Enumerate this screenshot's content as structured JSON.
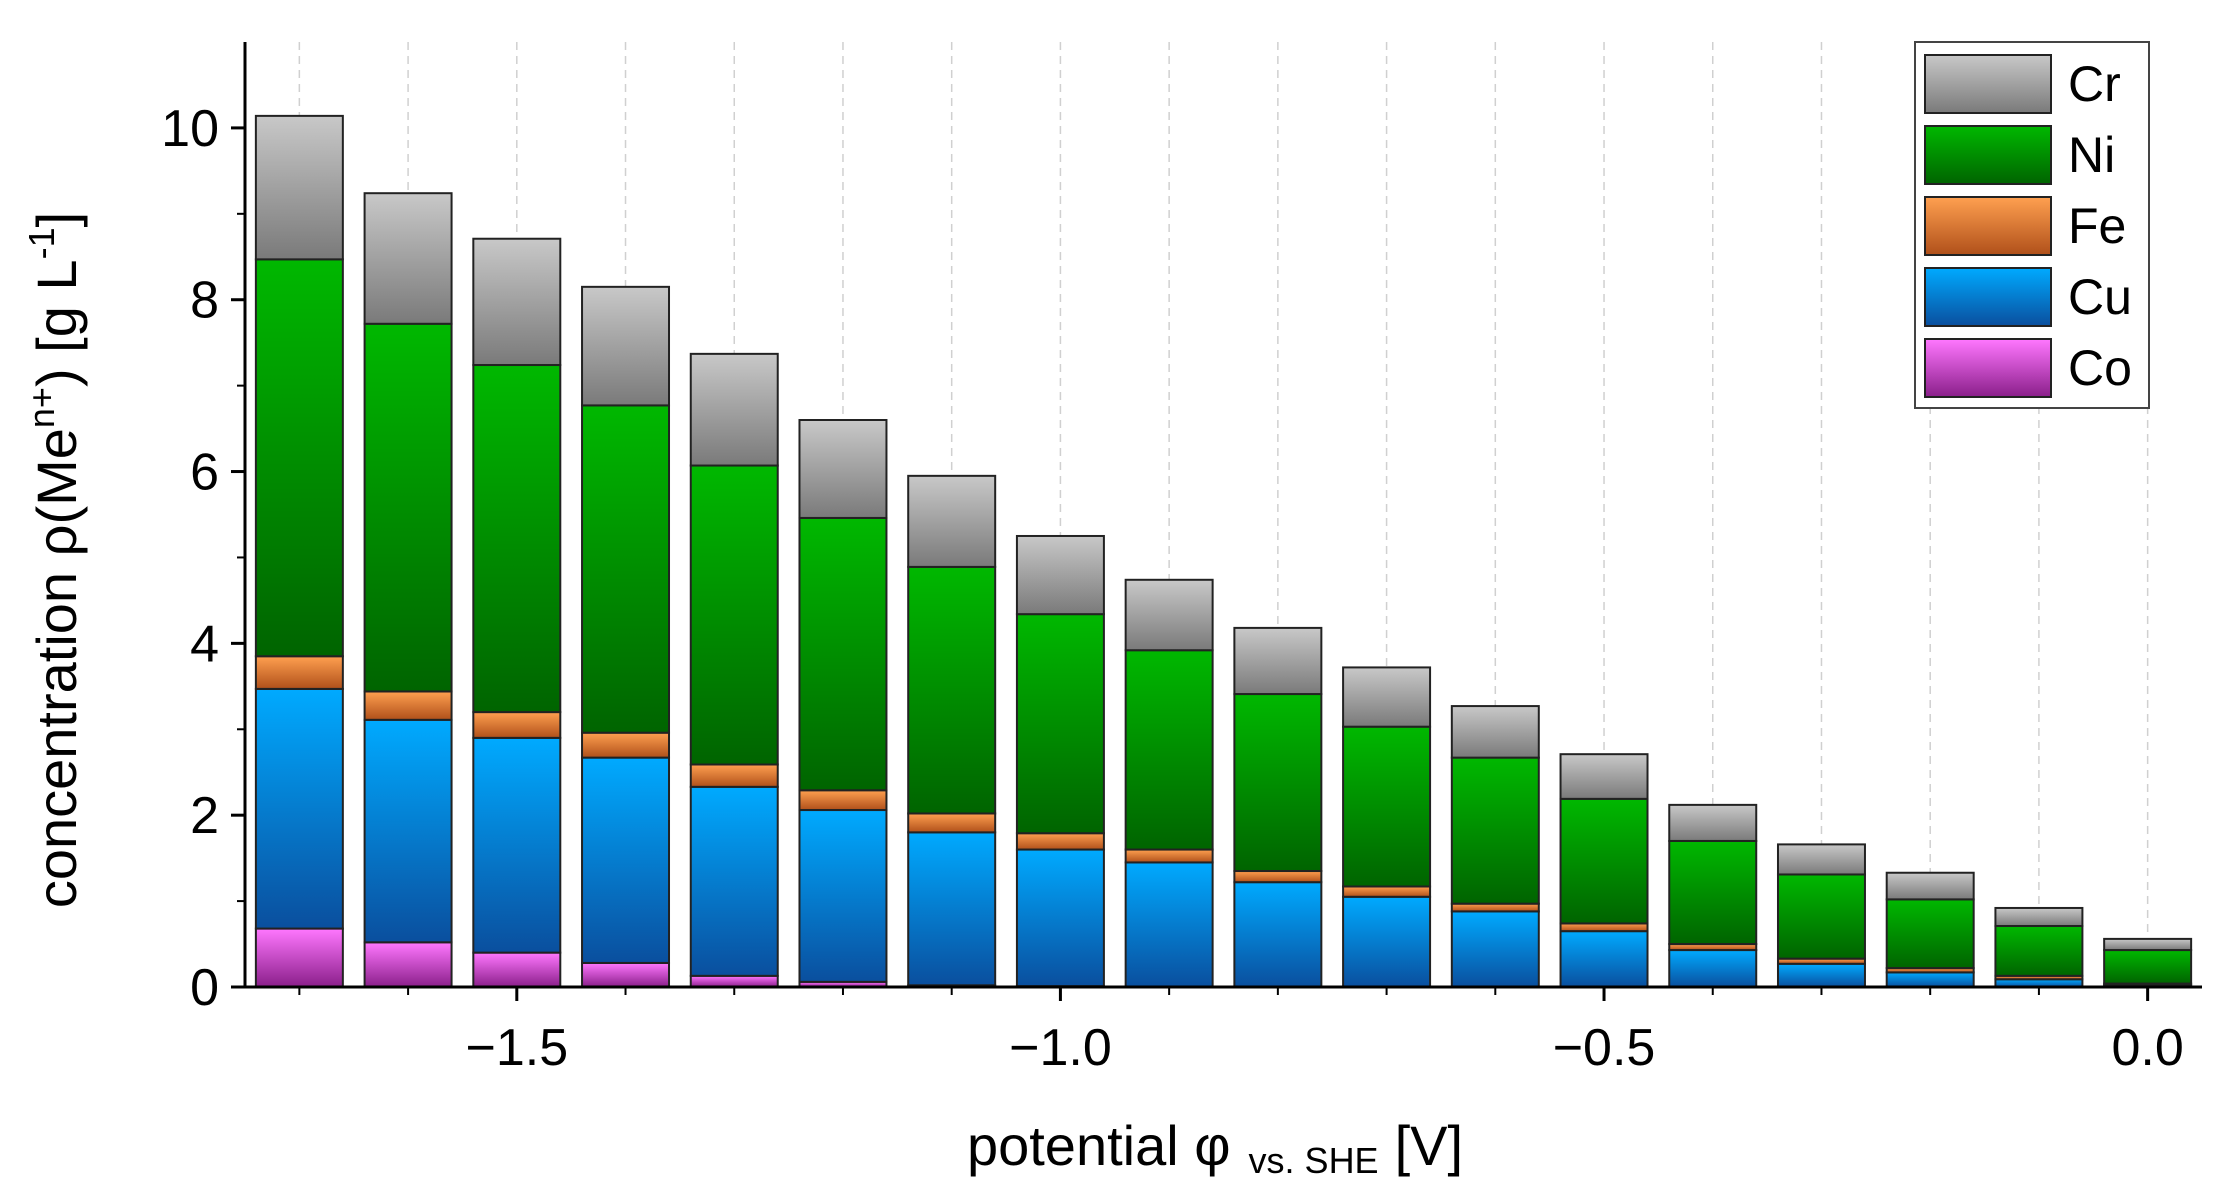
{
  "chart_data": {
    "type": "bar",
    "stacked": true,
    "title": "",
    "xlabel": {
      "main": "potential φ",
      "sub": "vs. SHE",
      "unit": "[V]"
    },
    "ylabel": {
      "prefix": "concentration ρ(Me",
      "sup1": "n+",
      "middle": ") [g L",
      "sup2": "-1",
      "suffix": "]"
    },
    "xlim": [
      -1.75,
      0.05
    ],
    "ylim": [
      0,
      11
    ],
    "xticks": [
      -1.5,
      -1.0,
      -0.5,
      0.0
    ],
    "xtick_labels": [
      "−1.5",
      "−1.0",
      "−0.5",
      "0.0"
    ],
    "yticks": [
      0,
      2,
      4,
      6,
      8,
      10
    ],
    "ytick_labels": [
      "0",
      "2",
      "4",
      "6",
      "8",
      "10"
    ],
    "grid": "vertical dashed",
    "legend_position": "top-right",
    "x": [
      -1.7,
      -1.6,
      -1.5,
      -1.4,
      -1.3,
      -1.2,
      -1.1,
      -1.0,
      -0.9,
      -0.8,
      -0.7,
      -0.6,
      -0.5,
      -0.4,
      -0.3,
      -0.2,
      -0.1,
      0.0
    ],
    "series": [
      {
        "name": "Co",
        "color_top": "#ff77ff",
        "color_bottom": "#8a1f8a",
        "values": [
          0.68,
          0.52,
          0.4,
          0.28,
          0.13,
          0.06,
          0.02,
          0.01,
          0.0,
          0.0,
          0.0,
          0.0,
          0.0,
          0.0,
          0.0,
          0.0,
          0.0,
          0.0
        ]
      },
      {
        "name": "Cu",
        "color_top": "#00aaff",
        "color_bottom": "#0a4f9e",
        "values": [
          2.79,
          2.59,
          2.5,
          2.39,
          2.2,
          2.0,
          1.78,
          1.59,
          1.45,
          1.22,
          1.05,
          0.88,
          0.65,
          0.43,
          0.27,
          0.17,
          0.09,
          0.02
        ]
      },
      {
        "name": "Fe",
        "color_top": "#ffa050",
        "color_bottom": "#b0501a",
        "values": [
          0.38,
          0.33,
          0.3,
          0.29,
          0.26,
          0.23,
          0.22,
          0.19,
          0.15,
          0.13,
          0.12,
          0.09,
          0.09,
          0.07,
          0.06,
          0.05,
          0.04,
          0.02
        ]
      },
      {
        "name": "Ni",
        "color_top": "#00b800",
        "color_bottom": "#006400",
        "values": [
          4.62,
          4.28,
          4.04,
          3.81,
          3.48,
          3.17,
          2.87,
          2.55,
          2.32,
          2.06,
          1.86,
          1.7,
          1.45,
          1.2,
          0.98,
          0.8,
          0.58,
          0.39
        ]
      },
      {
        "name": "Cr",
        "color_top": "#c8c8c8",
        "color_bottom": "#7a7a7a",
        "values": [
          1.67,
          1.52,
          1.47,
          1.38,
          1.3,
          1.14,
          1.06,
          0.91,
          0.82,
          0.77,
          0.69,
          0.6,
          0.52,
          0.42,
          0.35,
          0.31,
          0.21,
          0.13
        ]
      }
    ],
    "legend_order": [
      "Cr",
      "Ni",
      "Fe",
      "Cu",
      "Co"
    ]
  }
}
